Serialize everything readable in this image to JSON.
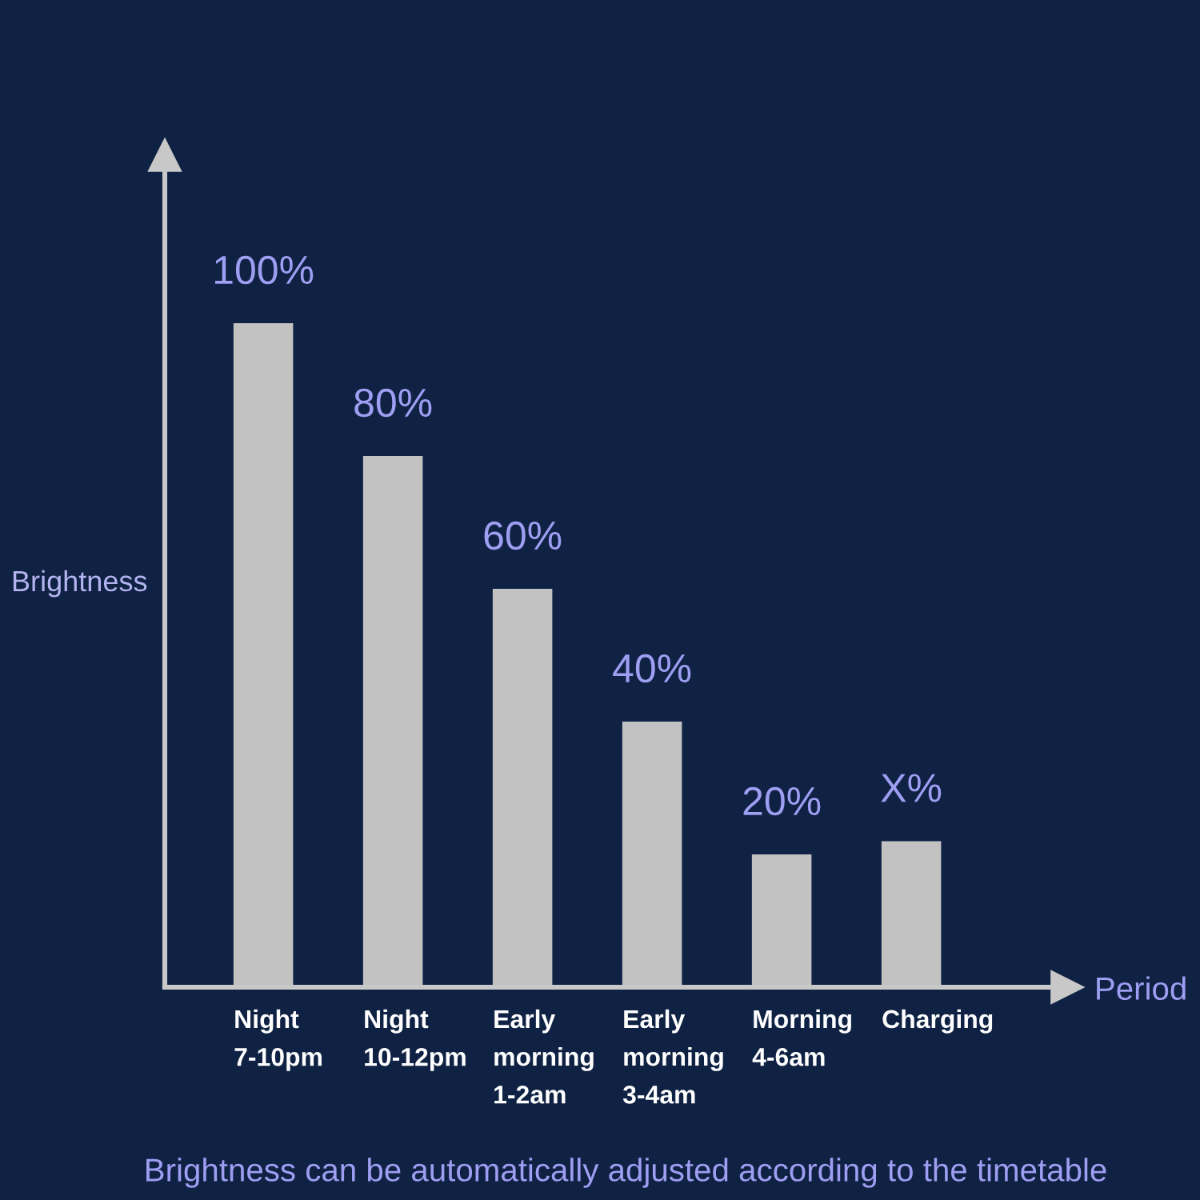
{
  "chart_data": {
    "type": "bar",
    "xlabel": "Period",
    "ylabel": "Brightness",
    "categories": [
      "Night\n7-10pm",
      "Night\n10-12pm",
      "Early\nmorning\n1-2am",
      "Early\nmorning\n3-4am",
      "Morning\n4-6am",
      "Charging"
    ],
    "values": [
      100,
      80,
      60,
      40,
      20,
      22
    ],
    "color": "#c2c2c2",
    "tick_labels": "x",
    "value_labels": [
      "100%",
      "80%",
      "60%",
      "40%",
      "20%",
      "X%"
    ],
    "annotations": [
      "Brightness can be automatically adjusted according to the timetable"
    ]
  }
}
